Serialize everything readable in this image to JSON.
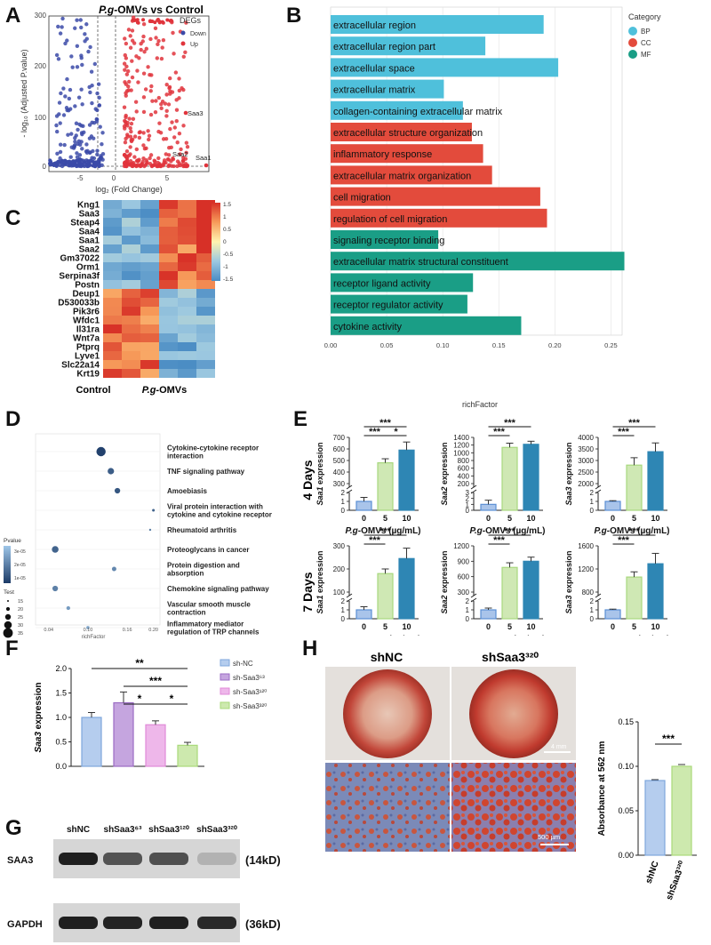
{
  "panels": {
    "A": "A",
    "B": "B",
    "C": "C",
    "D": "D",
    "E": "E",
    "F": "F",
    "G": "G",
    "H": "H"
  },
  "panel_a": {
    "title_italic": "P.g",
    "title_rest": "-OMVs vs Control",
    "legend_title": "DEGs",
    "legend_down": "Down",
    "legend_up": "Up",
    "xlabel": "log₂ (Fold Change)",
    "ylabel": "- log₁₀ (Adjusted P.value)",
    "xticks": [
      "-5",
      "0",
      "5"
    ],
    "yticks": [
      "0",
      "100",
      "200",
      "300"
    ],
    "labels": {
      "saa3": "Saa3",
      "saa2": "Saa2",
      "saa1": "Saa1"
    },
    "colors": {
      "down": "#3b4aa8",
      "up": "#e0343c"
    }
  },
  "chart_data": [
    {
      "type": "bar",
      "id": "B",
      "title": "",
      "xlabel": "richFactor",
      "xlim": [
        0,
        0.26
      ],
      "xticks": [
        "0.00",
        "0.05",
        "0.10",
        "0.15",
        "0.20",
        "0.25"
      ],
      "legend_title": "Category",
      "legend": [
        {
          "name": "BP",
          "color": "#4fc0db"
        },
        {
          "name": "CC",
          "color": "#e34b3c"
        },
        {
          "name": "MF",
          "color": "#1a9e86"
        }
      ],
      "categories": [
        "extracellular region",
        "extracellular region part",
        "extracellular space",
        "extracellular matrix",
        "collagen-containing extracellular matrix",
        "extracellular structure organization",
        "inflammatory response",
        "extracellular matrix organization",
        "cell migration",
        "regulation of cell migration",
        "signaling receptor binding",
        "extracellular matrix structural constituent",
        "receptor ligand activity",
        "receptor regulator activity",
        "cytokine activity"
      ],
      "values": [
        0.19,
        0.138,
        0.203,
        0.101,
        0.118,
        0.126,
        0.136,
        0.144,
        0.187,
        0.193,
        0.096,
        0.262,
        0.127,
        0.122,
        0.17
      ],
      "groups": [
        "BP",
        "BP",
        "BP",
        "BP",
        "BP",
        "CC",
        "CC",
        "CC",
        "CC",
        "CC",
        "MF",
        "MF",
        "MF",
        "MF",
        "MF"
      ]
    },
    {
      "type": "heatmap",
      "id": "C",
      "rows": [
        "Kng1",
        "Saa3",
        "Steap4",
        "Saa4",
        "Saa1",
        "Saa2",
        "Gm37022",
        "Orm1",
        "Serpina3f",
        "Postn",
        "Deup1",
        "D530033b",
        "Pik3r6",
        "Wfdc1",
        "Il31ra",
        "Wnt7a",
        "Ptprq",
        "Lyve1",
        "Slc22a14",
        "Krt19"
      ],
      "col_groups": [
        "Control",
        "P.g-OMVs"
      ],
      "scale_ticks": [
        "1.5",
        "1",
        "0.5",
        "0",
        "-0.5",
        "-1",
        "-1.5"
      ],
      "scale_range": [
        -1.5,
        1.5
      ]
    },
    {
      "type": "scatter",
      "id": "D",
      "pathways": [
        "Cytokine-cytokine receptor interaction",
        "TNF signaling pathway",
        "Amoebiasis",
        "Viral protein interaction with cytokine and cytokine receptor",
        "Rheumatoid arthritis",
        "Proteoglycans in cancer",
        "Protein digestion and absorption",
        "Chemokine signaling pathway",
        "Vascular smooth muscle contraction",
        "Inflammatory mediator regulation of TRP channels"
      ],
      "richFactor": [
        0.12,
        0.135,
        0.145,
        0.2,
        0.195,
        0.05,
        0.14,
        0.05,
        0.07,
        0.1
      ],
      "size_count": [
        35,
        25,
        22,
        12,
        10,
        26,
        18,
        22,
        16,
        14
      ],
      "pvalue_shade": [
        0.95,
        0.75,
        0.8,
        0.7,
        0.5,
        0.7,
        0.45,
        0.5,
        0.3,
        0.2
      ],
      "xlabel": "richFactor",
      "xticks": [
        "0.04",
        "0.10",
        "0.16",
        "0.20"
      ],
      "legend_pvalue_title": "Pvalue",
      "legend_pvalue_ticks": [
        "3e-05",
        "2e-05",
        "1e-05"
      ],
      "legend_size_title": "Test",
      "legend_size_ticks": [
        "15",
        "20",
        "25",
        "30",
        "35"
      ]
    },
    {
      "type": "bar",
      "id": "E-4d-Saa1",
      "categories": [
        "0",
        "5",
        "10"
      ],
      "values": [
        1,
        480,
        590
      ],
      "errors": [
        0.45,
        35,
        70
      ],
      "ylabel_gene": "Saa1",
      "ylabel_rest": " expression",
      "row": "4 Days",
      "yticks_low": [
        "0",
        "1",
        "2"
      ],
      "yticks_high": [
        "300",
        "400",
        "500",
        "600",
        "700"
      ],
      "ylim_low": [
        0,
        2
      ],
      "ylim_high": [
        300,
        700
      ],
      "sig": [
        {
          "from": 0,
          "to": 2,
          "label": "***"
        },
        {
          "from": 0,
          "to": 1,
          "label": "***"
        },
        {
          "from": 1,
          "to": 2,
          "label": "*"
        }
      ]
    },
    {
      "type": "bar",
      "id": "E-4d-Saa2",
      "categories": [
        "0",
        "5",
        "10"
      ],
      "values": [
        1,
        1140,
        1220
      ],
      "errors": [
        0.7,
        110,
        80
      ],
      "ylabel_gene": "Saa2",
      "ylabel_rest": " expression",
      "row": "4 Days",
      "yticks_low": [
        "0",
        "1",
        "2",
        "3"
      ],
      "yticks_high": [
        "200",
        "400",
        "600",
        "800",
        "1000",
        "1200",
        "1400"
      ],
      "ylim_low": [
        0,
        3
      ],
      "ylim_high": [
        200,
        1400
      ],
      "sig": [
        {
          "from": 0,
          "to": 2,
          "label": "***"
        },
        {
          "from": 0,
          "to": 1,
          "label": "***"
        }
      ]
    },
    {
      "type": "bar",
      "id": "E-4d-Saa3",
      "categories": [
        "0",
        "5",
        "10"
      ],
      "values": [
        1,
        2800,
        3380
      ],
      "errors": [
        0.08,
        320,
        380
      ],
      "ylabel_gene": "Saa3",
      "ylabel_rest": " expression",
      "row": "4 Days",
      "yticks_low": [
        "0",
        "1",
        "2"
      ],
      "yticks_high": [
        "2000",
        "2500",
        "3000",
        "3500",
        "4000"
      ],
      "ylim_low": [
        0,
        2
      ],
      "ylim_high": [
        2000,
        4000
      ],
      "sig": [
        {
          "from": 0,
          "to": 2,
          "label": "***"
        },
        {
          "from": 0,
          "to": 1,
          "label": "***"
        }
      ]
    },
    {
      "type": "bar",
      "id": "E-7d-Saa1",
      "categories": [
        "0",
        "5",
        "10"
      ],
      "values": [
        1,
        180,
        245
      ],
      "errors": [
        0.35,
        20,
        45
      ],
      "ylabel_gene": "Saa1",
      "ylabel_rest": " expression",
      "row": "7 Days",
      "yticks_low": [
        "0",
        "1",
        "2"
      ],
      "yticks_high": [
        "100",
        "200",
        "300"
      ],
      "ylim_low": [
        0,
        2
      ],
      "ylim_high": [
        100,
        300
      ],
      "sig": [
        {
          "from": 0,
          "to": 2,
          "label": "***"
        },
        {
          "from": 0,
          "to": 1,
          "label": "***"
        }
      ]
    },
    {
      "type": "bar",
      "id": "E-7d-Saa2",
      "categories": [
        "0",
        "5",
        "10"
      ],
      "values": [
        1,
        780,
        900
      ],
      "errors": [
        0.2,
        90,
        80
      ],
      "ylabel_gene": "Saa2",
      "ylabel_rest": " expression",
      "row": "7 Days",
      "yticks_low": [
        "0",
        "1",
        "2"
      ],
      "yticks_high": [
        "300",
        "600",
        "900",
        "1200"
      ],
      "ylim_low": [
        0,
        2
      ],
      "ylim_high": [
        300,
        1200
      ],
      "sig": [
        {
          "from": 0,
          "to": 2,
          "label": "***"
        },
        {
          "from": 0,
          "to": 1,
          "label": "***"
        }
      ]
    },
    {
      "type": "bar",
      "id": "E-7d-Saa3",
      "categories": [
        "0",
        "5",
        "10"
      ],
      "values": [
        1,
        1060,
        1290
      ],
      "errors": [
        0.08,
        90,
        180
      ],
      "ylabel_gene": "Saa3",
      "ylabel_rest": " expression",
      "row": "7 Days",
      "yticks_low": [
        "0",
        "1",
        "2"
      ],
      "yticks_high": [
        "800",
        "1200",
        "1600"
      ],
      "ylim_low": [
        0,
        2
      ],
      "ylim_high": [
        800,
        1600
      ],
      "sig": [
        {
          "from": 0,
          "to": 2,
          "label": "***"
        },
        {
          "from": 0,
          "to": 1,
          "label": "***"
        }
      ]
    },
    {
      "type": "bar",
      "id": "F",
      "categories": [
        "sh-NC",
        "sh-Saa3⁶³",
        "sh-Saa3¹²⁰",
        "sh-Saa3³²⁰"
      ],
      "values": [
        1.0,
        1.3,
        0.85,
        0.43
      ],
      "errors": [
        0.1,
        0.22,
        0.08,
        0.06
      ],
      "ylabel_gene": "Saa3",
      "ylabel_rest": " expression",
      "ylim": [
        0,
        2.0
      ],
      "yticks": [
        "0.0",
        "0.5",
        "1.0",
        "1.5",
        "2.0"
      ],
      "sig": [
        {
          "from": 0,
          "to": 3,
          "label": "**"
        },
        {
          "from": 1,
          "to": 3,
          "label": "***"
        },
        {
          "from": 1,
          "to": 2,
          "label": "*"
        },
        {
          "from": 2,
          "to": 3,
          "label": "*"
        }
      ]
    },
    {
      "type": "bar",
      "id": "H",
      "categories": [
        "shNC",
        "shSaa3³²⁰"
      ],
      "values": [
        0.084,
        0.1
      ],
      "errors": [
        0.001,
        0.002
      ],
      "ylabel": "Absorbance at 562 nm",
      "ylim": [
        0,
        0.15
      ],
      "yticks": [
        "0.00",
        "0.05",
        "0.10",
        "0.15"
      ],
      "sig": [
        {
          "from": 0,
          "to": 1,
          "label": "***"
        }
      ]
    }
  ],
  "panel_e": {
    "row1": "4 Days",
    "row2": "7 Days",
    "xlabel_italic": "P.g",
    "xlabel_rest": "-OMVs (µg/mL)",
    "colors": [
      "#5b8fd4",
      "#a8d87e",
      "#2e86b4"
    ]
  },
  "panel_c": {
    "col_control": "Control",
    "col_pg_italic": "P.g",
    "col_pg_rest": "-OMVs"
  },
  "panel_f": {
    "legend": [
      "sh-NC",
      "sh-Saa3⁶³",
      "sh-Saa3¹²⁰",
      "sh-Saa3³²⁰"
    ],
    "colors": [
      "#7ea6dc",
      "#9b6cc4",
      "#e08ad8",
      "#a9d97a"
    ]
  },
  "panel_g": {
    "lanes": [
      "shNC",
      "shSaa3⁶³",
      "shSaa3¹²⁰",
      "shSaa3³²⁰"
    ],
    "bands": [
      {
        "name": "SAA3",
        "size": "(14kD)",
        "intensity": [
          0.95,
          0.7,
          0.72,
          0.25
        ]
      },
      {
        "name": "GAPDH",
        "size": "(36kD)",
        "intensity": [
          0.95,
          0.93,
          0.95,
          0.9
        ]
      }
    ]
  },
  "panel_h": {
    "col1": "shNC",
    "col2": "shSaa3³²⁰",
    "scale_top": "4 mm",
    "scale_bottom": "500 µm",
    "bar_colors": [
      "#7ea6dc",
      "#a9d97a"
    ]
  }
}
